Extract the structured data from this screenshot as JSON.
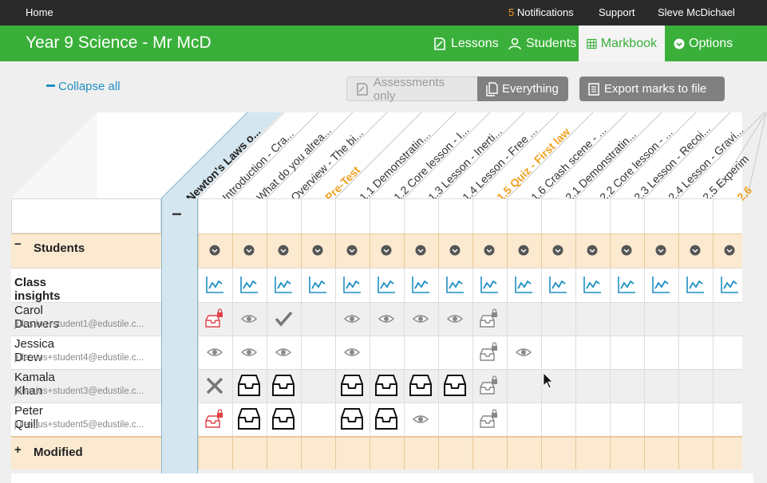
{
  "topbar": {
    "home": "Home",
    "notifications_count": "5",
    "notifications_label": "Notifications",
    "support": "Support",
    "user": "Sleve McDichael"
  },
  "header": {
    "title": "Year 9 Science - Mr McD",
    "nav": [
      {
        "label": "Lessons",
        "icon": "lessons-icon"
      },
      {
        "label": "Students",
        "icon": "students-icon"
      },
      {
        "label": "Markbook",
        "icon": "grid-icon",
        "active": true
      },
      {
        "label": "Options",
        "icon": "chevron-down-icon"
      }
    ]
  },
  "toolbar": {
    "collapse_all": "Collapse all",
    "assessments_only": "Assessments only",
    "everything": "Everything",
    "export": "Export marks to file"
  },
  "markbook": {
    "unit_title": "Newton's Laws o...",
    "unit_collapse_symbol": "−",
    "columns": [
      {
        "label": "Introduction - Cra...",
        "highlight": false
      },
      {
        "label": "What do you alrea...",
        "highlight": false
      },
      {
        "label": "Overview - The bi...",
        "highlight": false
      },
      {
        "label": "Pre-Test",
        "highlight": true
      },
      {
        "label": "1.1 Demonstratin...",
        "highlight": false
      },
      {
        "label": "1.2 Core lesson - I...",
        "highlight": false
      },
      {
        "label": "1.3 Lesson - Inerti...",
        "highlight": false
      },
      {
        "label": "1.4 Lesson - Free ...",
        "highlight": false
      },
      {
        "label": "1.5 Quiz - First law",
        "highlight": true
      },
      {
        "label": "1.6 Crash scene - ...",
        "highlight": false
      },
      {
        "label": "2.1 Demonstratin...",
        "highlight": false
      },
      {
        "label": "2.2 Core lesson - ...",
        "highlight": false
      },
      {
        "label": "2.3 Lesson - Recoi...",
        "highlight": false
      },
      {
        "label": "2.4 Lesson - Gravi...",
        "highlight": false
      },
      {
        "label": "2.5 Experim",
        "highlight": false
      },
      {
        "label": "2.6",
        "highlight": true
      }
    ],
    "students_label": "Students",
    "students_sign": "−",
    "class_insights_label": "Class insights",
    "modified_label": "Modified",
    "modified_sign": "+",
    "students": [
      {
        "name": "Carol Danvers",
        "email": "jules.ius+student1@edustile.c...",
        "marks": [
          "locked-inbox-red",
          "eye",
          "check",
          "",
          "eye",
          "eye",
          "eye",
          "eye",
          "locked-inbox-gray",
          "",
          "",
          "",
          "",
          "",
          "",
          ""
        ]
      },
      {
        "name": "Jessica Drew",
        "email": "jules.ius+student4@edustile.c...",
        "marks": [
          "eye",
          "eye",
          "eye",
          "",
          "eye",
          "",
          "",
          "",
          "locked-inbox-gray",
          "eye",
          "",
          "",
          "",
          "",
          "",
          ""
        ]
      },
      {
        "name": "Kamala Khan",
        "email": "jules.ius+student3@edustile.c...",
        "marks": [
          "cross",
          "inbox",
          "inbox",
          "",
          "inbox",
          "inbox",
          "inbox",
          "inbox",
          "locked-inbox-gray",
          "",
          "",
          "",
          "",
          "",
          "",
          ""
        ]
      },
      {
        "name": "Peter Quill",
        "email": "jules.ius+student5@edustile.c...",
        "marks": [
          "locked-inbox-red",
          "inbox",
          "inbox",
          "",
          "inbox",
          "inbox",
          "eye",
          "",
          "locked-inbox-gray",
          "",
          "",
          "",
          "",
          "",
          "",
          ""
        ]
      }
    ]
  }
}
